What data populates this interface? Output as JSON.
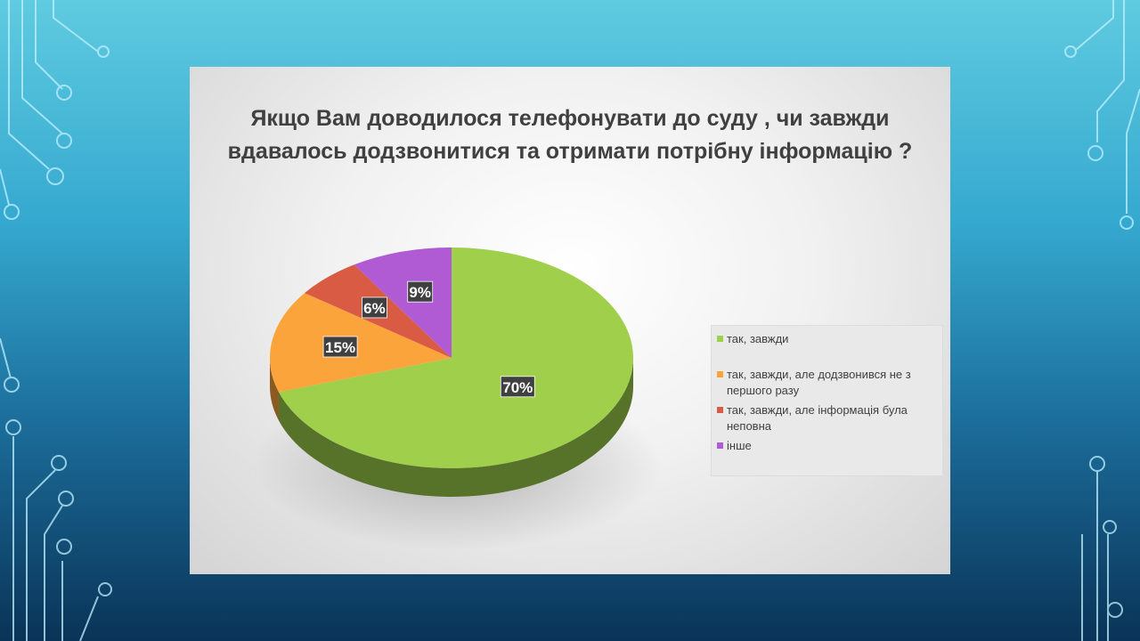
{
  "chart_data": {
    "type": "pie",
    "title": "Якщо Вам доводилося телефонувати до суду , чи завжди вдавалось додзвонитися та отримати потрібну інформацію ?",
    "categories": [
      "так, завжди",
      "так, завжди, але додзвонився не з першого разу",
      "так, завжди, але інформація була неповна",
      "інше"
    ],
    "values": [
      70,
      15,
      6,
      9
    ],
    "labels": [
      "70%",
      "15%",
      "6%",
      "9%"
    ],
    "colors": [
      "#9fcf4b",
      "#fba43c",
      "#d95b44",
      "#b05ad4"
    ],
    "legend_position": "right"
  }
}
